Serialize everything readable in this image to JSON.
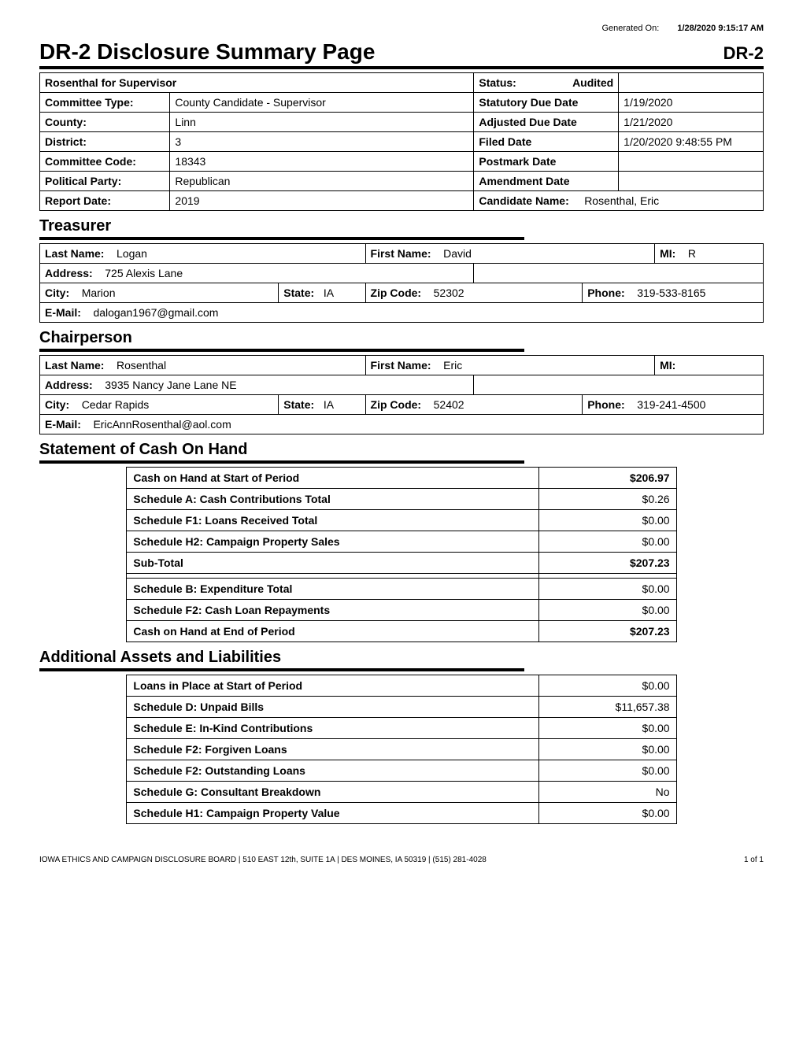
{
  "meta": {
    "generated_label": "Generated On:",
    "generated_value": "1/28/2020 9:15:17 AM"
  },
  "title": {
    "main": "DR-2 Disclosure Summary Page",
    "code": "DR-2"
  },
  "committee": {
    "name": "Rosenthal for Supervisor",
    "status_label": "Status:",
    "status_value": "Audited",
    "type_label": "Committee Type:",
    "type_value": "County Candidate - Supervisor",
    "statutory_label": "Statutory Due Date",
    "statutory_value": "1/19/2020",
    "county_label": "County:",
    "county_value": "Linn",
    "adjusted_label": "Adjusted Due Date",
    "adjusted_value": "1/21/2020",
    "district_label": "District:",
    "district_value": "3",
    "filed_label": "Filed Date",
    "filed_value": "1/20/2020 9:48:55 PM",
    "code_label": "Committee Code:",
    "code_value": "18343",
    "postmark_label": "Postmark Date",
    "postmark_value": "",
    "party_label": "Political Party:",
    "party_value": "Republican",
    "amendment_label": "Amendment Date",
    "amendment_value": "",
    "report_label": "Report Date:",
    "report_value": "2019",
    "candidate_label": "Candidate Name:",
    "candidate_value": "Rosenthal, Eric"
  },
  "treasurer": {
    "section": "Treasurer",
    "last_label": "Last Name:",
    "last_value": "Logan",
    "first_label": "First Name:",
    "first_value": "David",
    "mi_label": "MI:",
    "mi_value": "R",
    "address_label": "Address:",
    "address_value": "725 Alexis Lane",
    "city_label": "City:",
    "city_value": "Marion",
    "state_label": "State:",
    "state_value": "IA",
    "zip_label": "Zip Code:",
    "zip_value": "52302",
    "phone_label": "Phone:",
    "phone_value": "319-533-8165",
    "email_label": "E-Mail:",
    "email_value": "dalogan1967@gmail.com"
  },
  "chairperson": {
    "section": "Chairperson",
    "last_label": "Last Name:",
    "last_value": "Rosenthal",
    "first_label": "First Name:",
    "first_value": "Eric",
    "mi_label": "MI:",
    "mi_value": "",
    "address_label": "Address:",
    "address_value": "3935 Nancy Jane Lane NE",
    "city_label": "City:",
    "city_value": "Cedar Rapids",
    "state_label": "State:",
    "state_value": "IA",
    "zip_label": "Zip Code:",
    "zip_value": "52402",
    "phone_label": "Phone:",
    "phone_value": "319-241-4500",
    "email_label": "E-Mail:",
    "email_value": "EricAnnRosenthal@aol.com"
  },
  "cash": {
    "section": "Statement of Cash On Hand",
    "rows": [
      {
        "label": "Cash on Hand at Start of Period",
        "value": "$206.97",
        "bold": true
      },
      {
        "label": "Schedule A: Cash Contributions Total",
        "value": "$0.26",
        "bold": false
      },
      {
        "label": "Schedule F1: Loans Received Total",
        "value": "$0.00",
        "bold": false
      },
      {
        "label": "Schedule H2: Campaign Property Sales",
        "value": "$0.00",
        "bold": false
      },
      {
        "label": "Sub-Total",
        "value": "$207.23",
        "bold": true
      },
      {
        "label": "Schedule B: Expenditure Total",
        "value": "$0.00",
        "bold": false,
        "spacer_before": true
      },
      {
        "label": "Schedule F2: Cash Loan Repayments",
        "value": "$0.00",
        "bold": false
      },
      {
        "label": "Cash on Hand at End of Period",
        "value": "$207.23",
        "bold": true
      }
    ]
  },
  "liabilities": {
    "section": "Additional Assets and Liabilities",
    "rows": [
      {
        "label": "Loans in Place at Start of Period",
        "value": "$0.00"
      },
      {
        "label": "Schedule D: Unpaid Bills",
        "value": "$11,657.38"
      },
      {
        "label": "Schedule E: In-Kind Contributions",
        "value": "$0.00"
      },
      {
        "label": "Schedule F2: Forgiven Loans",
        "value": "$0.00"
      },
      {
        "label": "Schedule F2: Outstanding Loans",
        "value": "$0.00"
      },
      {
        "label": "Schedule G: Consultant Breakdown",
        "value": "No"
      },
      {
        "label": "Schedule H1: Campaign Property Value",
        "value": "$0.00"
      }
    ]
  },
  "footer": {
    "org": "IOWA ETHICS AND CAMPAIGN DISCLOSURE BOARD | 510 EAST 12th, SUITE 1A | DES MOINES, IA 50319 | (515) 281-4028",
    "page": "1 of 1"
  }
}
